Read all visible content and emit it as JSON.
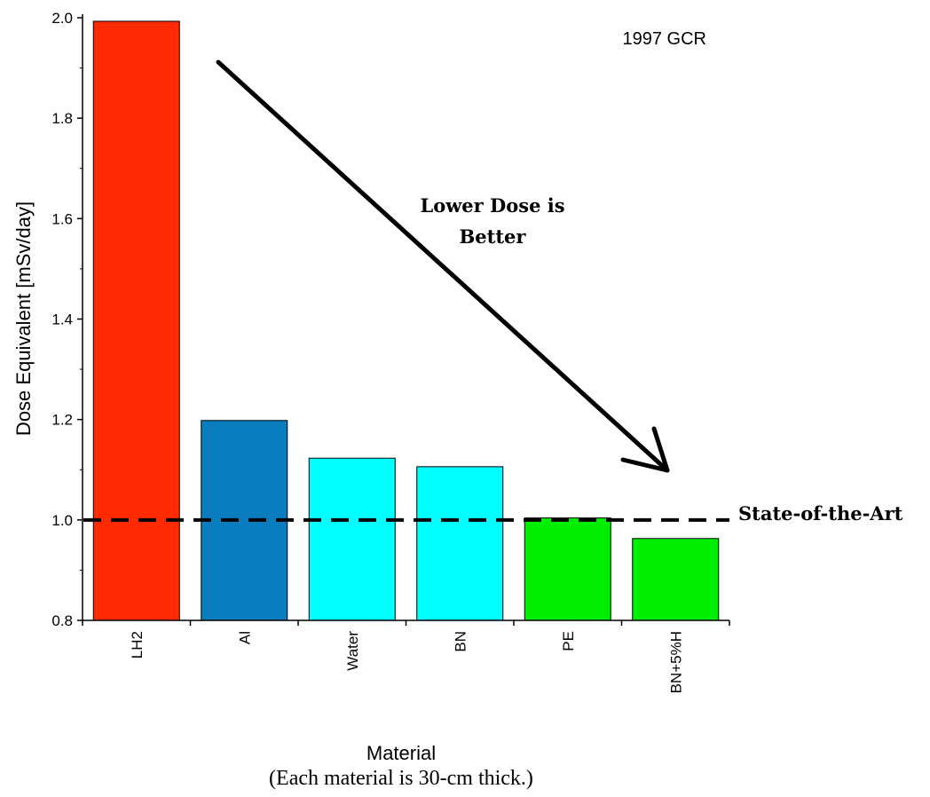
{
  "chart_data": {
    "type": "bar",
    "categories": [
      "LH2",
      "Al",
      "Water",
      "BN",
      "PE",
      "BN+5%H"
    ],
    "values": [
      1.993,
      1.198,
      1.123,
      1.106,
      1.004,
      0.963
    ],
    "colors": [
      "#ff2a00",
      "#0a7dbe",
      "#00ffff",
      "#00ffff",
      "#00ee00",
      "#00ee00"
    ],
    "ylabel": "Dose Equivalent [mSv/day]",
    "xlabel": "Material",
    "xnote": "(Each material is 30-cm thick.)",
    "ylim": [
      0.8,
      2.0
    ],
    "yticks": [
      "0.8",
      "1.0",
      "1.2",
      "1.4",
      "1.6",
      "1.8",
      "2.0"
    ],
    "reference_line": {
      "value": 1.0,
      "label": "State-of-the-Art",
      "style": "dashed"
    },
    "annotations": {
      "corner_label": "1997 GCR",
      "arrow_text_line1": "Lower Dose is",
      "arrow_text_line2": "Better"
    },
    "grid": false
  }
}
